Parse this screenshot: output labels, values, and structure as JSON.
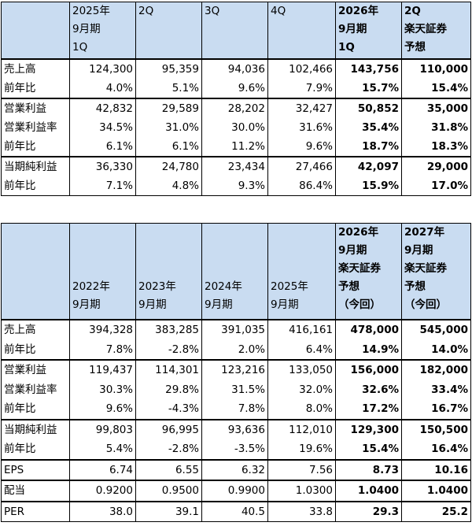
{
  "table1": {
    "header": [
      "2025年\n9月期\n1Q",
      "2Q",
      "3Q",
      "4Q",
      "2026年\n9月期\n1Q",
      "2Q\n楽天証券\n予想"
    ],
    "rows": [
      [
        "売上高",
        "124,300",
        "95,359",
        "94,036",
        "102,466",
        "143,756",
        "110,000"
      ],
      [
        "前年比",
        "4.0%",
        "5.1%",
        "9.6%",
        "7.9%",
        "15.7%",
        "15.4%"
      ],
      [
        "営業利益",
        "42,832",
        "29,589",
        "28,202",
        "32,427",
        "50,852",
        "35,000"
      ],
      [
        "営業利益率",
        "34.5%",
        "31.0%",
        "30.0%",
        "31.6%",
        "35.4%",
        "31.8%"
      ],
      [
        "前年比",
        "6.1%",
        "6.1%",
        "11.2%",
        "9.6%",
        "18.7%",
        "18.3%"
      ],
      [
        "当期純利益",
        "36,330",
        "24,780",
        "23,434",
        "27,466",
        "42,097",
        "29,000"
      ],
      [
        "前年比",
        "7.1%",
        "4.8%",
        "9.3%",
        "86.4%",
        "15.9%",
        "17.0%"
      ]
    ]
  },
  "table2": {
    "header": [
      "2022年\n9月期",
      "2023年\n9月期",
      "2024年\n9月期",
      "2025年\n9月期",
      "2026年\n9月期\n楽天証券\n予想\n（今回）",
      "2027年\n9月期\n楽天証券\n予想\n（今回）"
    ],
    "rows": [
      [
        "売上高",
        "394,328",
        "383,285",
        "391,035",
        "416,161",
        "478,000",
        "545,000"
      ],
      [
        "前年比",
        "7.8%",
        "-2.8%",
        "2.0%",
        "6.4%",
        "14.9%",
        "14.0%"
      ],
      [
        "営業利益",
        "119,437",
        "114,301",
        "123,216",
        "133,050",
        "156,000",
        "182,000"
      ],
      [
        "営業利益率",
        "30.3%",
        "29.8%",
        "31.5%",
        "32.0%",
        "32.6%",
        "33.4%"
      ],
      [
        "前年比",
        "9.6%",
        "-4.3%",
        "7.8%",
        "8.0%",
        "17.2%",
        "16.7%"
      ],
      [
        "当期純利益",
        "99,803",
        "96,995",
        "93,636",
        "112,010",
        "129,300",
        "150,500"
      ],
      [
        "前年比",
        "5.4%",
        "-2.8%",
        "-3.5%",
        "19.6%",
        "15.4%",
        "16.4%"
      ],
      [
        "EPS",
        "6.74",
        "6.55",
        "6.32",
        "7.56",
        "8.73",
        "10.16"
      ],
      [
        "配当",
        "0.9200",
        "0.9500",
        "0.9900",
        "1.0300",
        "1.0400",
        "1.0400"
      ],
      [
        "PER",
        "38.0",
        "39.1",
        "40.5",
        "33.8",
        "29.3",
        "25.2"
      ]
    ]
  }
}
